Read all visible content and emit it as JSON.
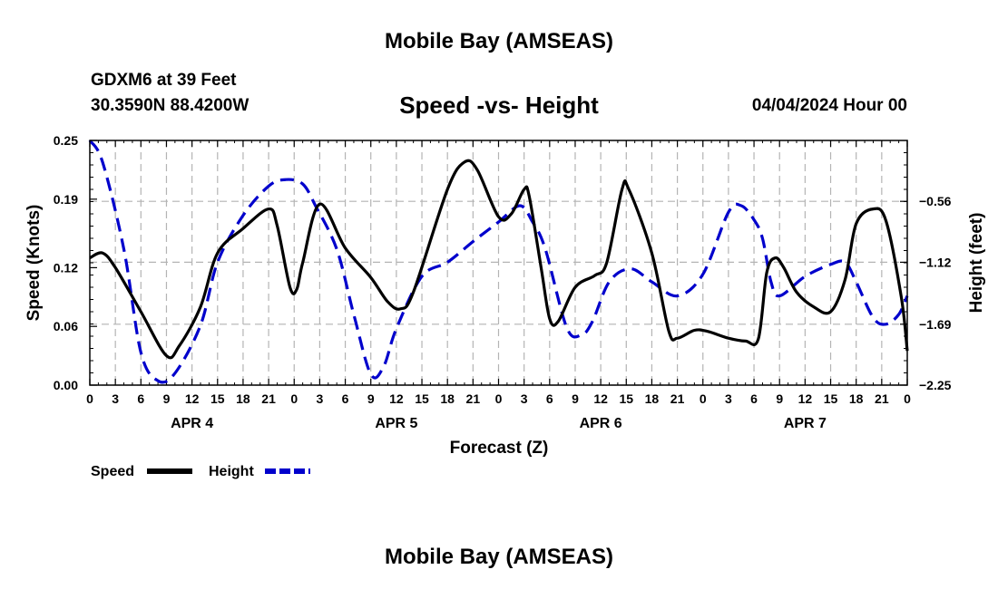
{
  "header": {
    "title": "Mobile Bay (AMSEAS)",
    "station": "GDXM6 at 39 Feet",
    "coords": "30.3590N  88.4200W",
    "subtitle": "Speed -vs- Height",
    "datetime": "04/04/2024 Hour 00"
  },
  "footer": {
    "title": "Mobile Bay (AMSEAS)"
  },
  "chart_data": {
    "type": "line",
    "title": "Speed -vs- Height",
    "xlabel": "Forecast (Z)",
    "ylabel": "Speed (Knots)",
    "y2label": "Height (feet)",
    "x_unit": "forecast hours from 04/04/2024 00Z",
    "xlim": [
      0,
      96
    ],
    "ylim": [
      0,
      0.25
    ],
    "y2lim": [
      -2.25,
      -0.0
    ],
    "yticks": [
      0.0,
      0.06,
      0.12,
      0.19,
      0.25
    ],
    "ytick_labels": [
      "0.00",
      "0.06",
      "0.12",
      "0.19",
      "0.25"
    ],
    "y2ticks": [
      -2.25,
      -1.69,
      -1.12,
      -0.56
    ],
    "y2tick_labels": [
      "−2.25",
      "−1.69",
      "−1.12",
      "−0.56"
    ],
    "xtick_labels": [
      "0",
      "3",
      "6",
      "9",
      "12",
      "15",
      "18",
      "21",
      "0",
      "3",
      "6",
      "9",
      "12",
      "15",
      "18",
      "21",
      "0",
      "3",
      "6",
      "9",
      "12",
      "15",
      "18",
      "21",
      "0",
      "3",
      "6",
      "9",
      "12",
      "15",
      "18",
      "21",
      "0"
    ],
    "day_labels": [
      {
        "label": "APR 4",
        "x": 12
      },
      {
        "label": "APR 5",
        "x": 36
      },
      {
        "label": "APR 6",
        "x": 60
      },
      {
        "label": "APR 7",
        "x": 84
      }
    ],
    "grid": true,
    "legend_position": "bottom-left",
    "series": [
      {
        "name": "Speed",
        "axis": "left",
        "color": "#000000",
        "style": "solid",
        "points": [
          [
            0,
            0.13
          ],
          [
            1.5,
            0.135
          ],
          [
            3,
            0.12
          ],
          [
            6,
            0.075
          ],
          [
            9,
            0.03
          ],
          [
            10.5,
            0.04
          ],
          [
            13,
            0.08
          ],
          [
            15,
            0.135
          ],
          [
            18,
            0.16
          ],
          [
            21,
            0.18
          ],
          [
            22,
            0.163
          ],
          [
            23.5,
            0.1
          ],
          [
            24.3,
            0.098
          ],
          [
            25,
            0.125
          ],
          [
            27,
            0.185
          ],
          [
            30,
            0.14
          ],
          [
            33,
            0.11
          ],
          [
            35,
            0.085
          ],
          [
            36.5,
            0.078
          ],
          [
            38,
            0.095
          ],
          [
            42,
            0.2
          ],
          [
            44,
            0.228
          ],
          [
            45.5,
            0.22
          ],
          [
            48,
            0.172
          ],
          [
            49.5,
            0.175
          ],
          [
            51,
            0.2
          ],
          [
            51.6,
            0.193
          ],
          [
            53,
            0.12
          ],
          [
            54,
            0.068
          ],
          [
            55,
            0.065
          ],
          [
            57,
            0.1
          ],
          [
            59.3,
            0.112
          ],
          [
            60.7,
            0.125
          ],
          [
            62.5,
            0.2
          ],
          [
            63.3,
            0.2
          ],
          [
            66,
            0.135
          ],
          [
            68,
            0.055
          ],
          [
            69,
            0.048
          ],
          [
            71,
            0.056
          ],
          [
            72.5,
            0.055
          ],
          [
            75,
            0.048
          ],
          [
            77,
            0.045
          ],
          [
            78.5,
            0.047
          ],
          [
            79.5,
            0.115
          ],
          [
            80.5,
            0.13
          ],
          [
            81.5,
            0.12
          ],
          [
            83,
            0.095
          ],
          [
            85,
            0.08
          ],
          [
            87,
            0.075
          ],
          [
            88.7,
            0.108
          ],
          [
            90,
            0.165
          ],
          [
            92,
            0.18
          ],
          [
            93.5,
            0.168
          ],
          [
            95.3,
            0.09
          ],
          [
            96,
            0.035
          ]
        ]
      },
      {
        "name": "Height",
        "axis": "right",
        "color": "#0000cc",
        "style": "dashed",
        "points": [
          [
            0,
            -0.0
          ],
          [
            1.5,
            -0.2
          ],
          [
            4,
            -1.0
          ],
          [
            6,
            -1.95
          ],
          [
            8,
            -2.21
          ],
          [
            10,
            -2.14
          ],
          [
            13,
            -1.7
          ],
          [
            15,
            -1.12
          ],
          [
            18,
            -0.69
          ],
          [
            21,
            -0.42
          ],
          [
            23,
            -0.36
          ],
          [
            25,
            -0.4
          ],
          [
            26.5,
            -0.6
          ],
          [
            29,
            -1.0
          ],
          [
            31,
            -1.6
          ],
          [
            33,
            -2.15
          ],
          [
            34.5,
            -2.08
          ],
          [
            36,
            -1.73
          ],
          [
            39,
            -1.25
          ],
          [
            42,
            -1.12
          ],
          [
            45,
            -0.93
          ],
          [
            48,
            -0.75
          ],
          [
            50.5,
            -0.6
          ],
          [
            52,
            -0.75
          ],
          [
            53.5,
            -1.0
          ],
          [
            56,
            -1.72
          ],
          [
            57.7,
            -1.79
          ],
          [
            59,
            -1.67
          ],
          [
            61,
            -1.3
          ],
          [
            63.5,
            -1.18
          ],
          [
            66,
            -1.3
          ],
          [
            69,
            -1.43
          ],
          [
            72,
            -1.23
          ],
          [
            75,
            -0.66
          ],
          [
            76.5,
            -0.6
          ],
          [
            78,
            -0.73
          ],
          [
            79,
            -0.9
          ],
          [
            80,
            -1.3
          ],
          [
            81,
            -1.43
          ],
          [
            84,
            -1.25
          ],
          [
            87,
            -1.14
          ],
          [
            88.7,
            -1.12
          ],
          [
            90,
            -1.3
          ],
          [
            92,
            -1.63
          ],
          [
            93.5,
            -1.69
          ],
          [
            95,
            -1.6
          ],
          [
            96,
            -1.43
          ]
        ]
      }
    ]
  },
  "legend": [
    {
      "label": "Speed",
      "color": "#000000",
      "style": "solid"
    },
    {
      "label": "Height",
      "color": "#0000cc",
      "style": "dashed"
    }
  ]
}
